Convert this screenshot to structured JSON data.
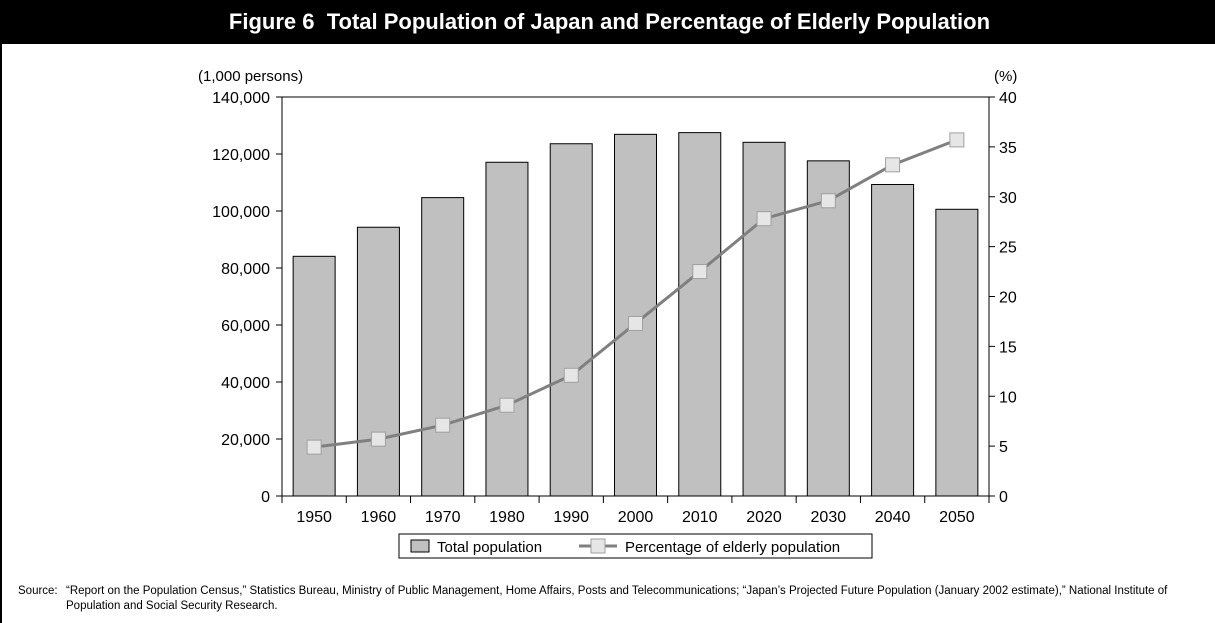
{
  "figure": {
    "title": "Figure 6  Total Population of Japan and Percentage of Elderly Population",
    "source_label": "Source:",
    "source_text": "“Report on the Population Census,” Statistics Bureau, Ministry of Public Management, Home Affairs, Posts and Telecommunications; “Japan’s Projected Future Population (January 2002 estimate),” National Institute of Population and Social Security Research."
  },
  "chart_data": {
    "type": "bar",
    "title": "Figure 6  Total Population of Japan and Percentage of Elderly Population",
    "categories": [
      "1950",
      "1960",
      "1970",
      "1980",
      "1990",
      "2000",
      "2010",
      "2020",
      "2030",
      "2040",
      "2050"
    ],
    "left_axis": {
      "unit": "(1,000 persons)",
      "range": [
        0,
        140000
      ],
      "ticks": [
        0,
        20000,
        40000,
        60000,
        80000,
        100000,
        120000,
        140000
      ],
      "tick_labels": [
        "0",
        "20,000",
        "40,000",
        "60,000",
        "80,000",
        "100,000",
        "120,000",
        "140,000"
      ]
    },
    "right_axis": {
      "unit": "(%)",
      "range": [
        0,
        40
      ],
      "ticks": [
        0,
        5,
        10,
        15,
        20,
        25,
        30,
        35,
        40
      ],
      "tick_labels": [
        "0",
        "5",
        "10",
        "15",
        "20",
        "25",
        "30",
        "35",
        "40"
      ]
    },
    "series": [
      {
        "name": "Total population",
        "kind": "bar",
        "axis": "left",
        "color": "#c0c0c0",
        "values": [
          84100,
          94300,
          104700,
          117100,
          123600,
          126900,
          127500,
          124100,
          117600,
          109300,
          100600
        ]
      },
      {
        "name": "Percentage of elderly population",
        "kind": "line",
        "axis": "right",
        "color": "#808080",
        "marker_color": "#e6e6e6",
        "values": [
          4.9,
          5.7,
          7.1,
          9.1,
          12.1,
          17.3,
          22.5,
          27.8,
          29.6,
          33.2,
          35.7
        ]
      }
    ],
    "legend_position": "bottom-center",
    "grid": false
  }
}
